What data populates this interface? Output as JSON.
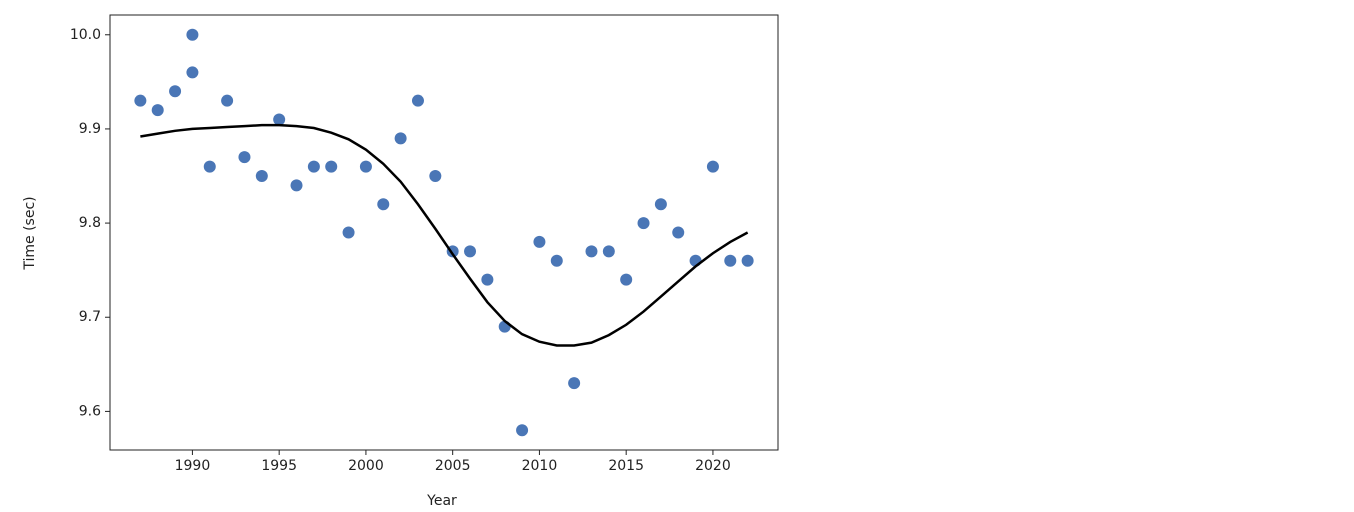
{
  "chart_data": {
    "type": "scatter",
    "xlabel": "Year",
    "ylabel": "Time (sec)",
    "xlim": [
      1985.25,
      2023.75
    ],
    "ylim": [
      9.559,
      10.021
    ],
    "xticks": [
      1990,
      1995,
      2000,
      2005,
      2010,
      2015,
      2020
    ],
    "yticks": [
      9.6,
      9.7,
      9.8,
      9.9,
      {
        "value": 10,
        "label": "10.0"
      }
    ],
    "grid": false,
    "series": [
      {
        "type": "scatter",
        "color": "#4a76b6",
        "x": [
          1987,
          1988,
          1989,
          1990,
          1990,
          1991,
          1992,
          1993,
          1994,
          1995,
          1996,
          1997,
          1998,
          1999,
          2000,
          2001,
          2002,
          2003,
          2004,
          2005,
          2006,
          2007,
          2008,
          2009,
          2010,
          2011,
          2012,
          2013,
          2014,
          2015,
          2016,
          2017,
          2018,
          2019,
          2020,
          2021,
          2022
        ],
        "values": [
          9.93,
          9.92,
          9.94,
          10.0,
          9.96,
          9.86,
          9.93,
          9.87,
          9.85,
          9.91,
          9.84,
          9.86,
          9.86,
          9.79,
          9.86,
          9.82,
          9.89,
          9.93,
          9.85,
          9.77,
          9.77,
          9.74,
          9.69,
          9.58,
          9.78,
          9.76,
          9.63,
          9.77,
          9.77,
          9.74,
          9.8,
          9.82,
          9.79,
          9.76,
          9.86,
          9.76,
          9.76
        ]
      },
      {
        "type": "line",
        "color": "#000000",
        "x": [
          1987,
          1988,
          1989,
          1990,
          1991,
          1992,
          1993,
          1994,
          1995,
          1996,
          1997,
          1998,
          1999,
          2000,
          2001,
          2002,
          2003,
          2004,
          2005,
          2006,
          2007,
          2008,
          2009,
          2010,
          2011,
          2012,
          2013,
          2014,
          2015,
          2016,
          2017,
          2018,
          2019,
          2020,
          2021,
          2022
        ],
        "values": [
          9.892,
          9.895,
          9.898,
          9.9,
          9.901,
          9.902,
          9.903,
          9.904,
          9.904,
          9.903,
          9.901,
          9.896,
          9.889,
          9.878,
          9.863,
          9.844,
          9.82,
          9.794,
          9.767,
          9.741,
          9.716,
          9.696,
          9.682,
          9.674,
          9.67,
          9.67,
          9.673,
          9.681,
          9.692,
          9.706,
          9.722,
          9.738,
          9.754,
          9.768,
          9.78,
          9.79
        ]
      }
    ]
  }
}
